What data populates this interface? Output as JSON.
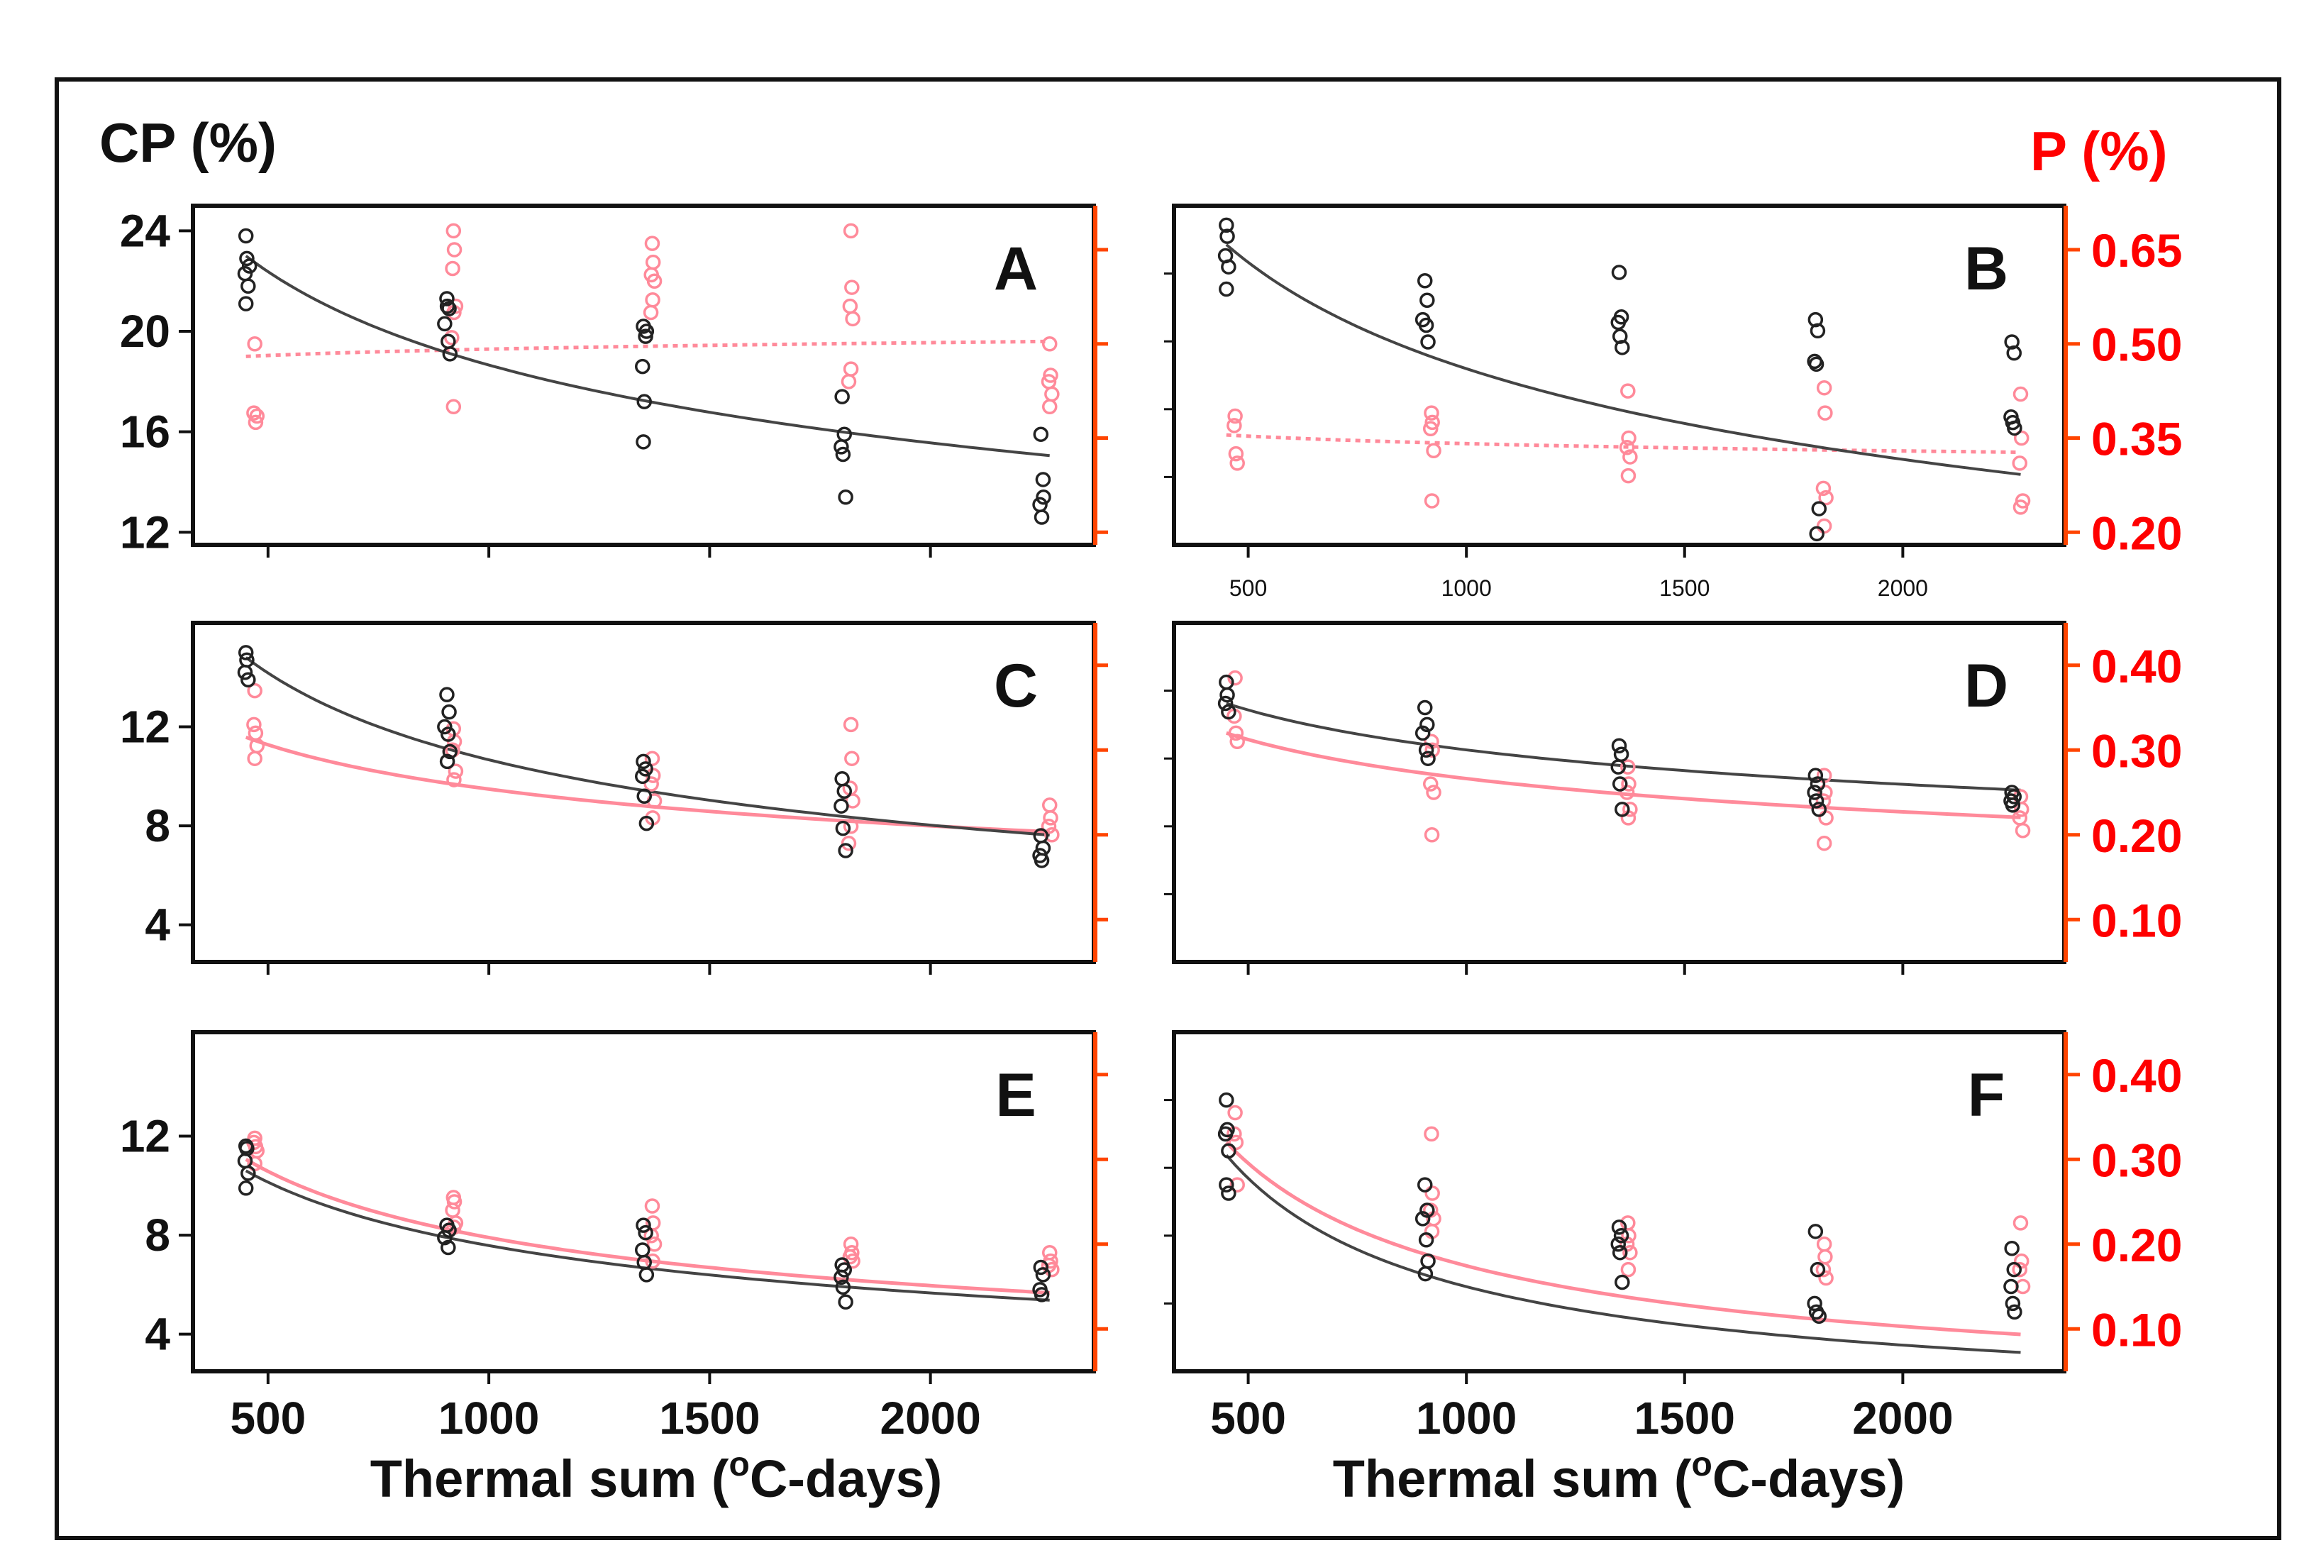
{
  "figure": {
    "left_axis_title": "CP (%)",
    "right_axis_title": "P (%)",
    "xlabel_left": "Thermal sum (",
    "xlabel_right": "Thermal sum (",
    "xlabel_sup": "o",
    "xlabel_tail": "C-days)",
    "colors": {
      "cp": "#222222",
      "p": "#ff8a9a",
      "p_axis": "#ff4400",
      "p_label": "#ff0000"
    }
  },
  "chart_data": [
    {
      "type": "scatter",
      "panel": "A",
      "x_ticks": [],
      "xlim": [
        330,
        2370
      ],
      "cp_ylim": [
        11.5,
        25
      ],
      "cp_ticks": [
        12,
        16,
        20,
        24
      ],
      "p_ylim": [
        0.18,
        0.72
      ],
      "p_ticks": [],
      "p_tick_marks": [
        0.2,
        0.35,
        0.5,
        0.65
      ],
      "cp_points": [
        [
          450,
          23.8
        ],
        [
          452,
          22.9
        ],
        [
          448,
          22.3
        ],
        [
          455,
          21.8
        ],
        [
          450,
          21.1
        ],
        [
          458,
          22.6
        ],
        [
          905,
          21.3
        ],
        [
          910,
          20.9
        ],
        [
          900,
          20.3
        ],
        [
          908,
          19.6
        ],
        [
          912,
          19.1
        ],
        [
          906,
          21.0
        ],
        [
          1350,
          20.2
        ],
        [
          1355,
          19.8
        ],
        [
          1348,
          18.6
        ],
        [
          1352,
          17.2
        ],
        [
          1350,
          15.6
        ],
        [
          1357,
          20.0
        ],
        [
          1800,
          17.4
        ],
        [
          1805,
          15.9
        ],
        [
          1798,
          15.4
        ],
        [
          1802,
          15.1
        ],
        [
          1808,
          13.4
        ],
        [
          2250,
          15.9
        ],
        [
          2255,
          14.1
        ],
        [
          2248,
          13.1
        ],
        [
          2252,
          12.6
        ],
        [
          2256,
          13.4
        ]
      ],
      "p_points": [
        [
          470,
          0.5
        ],
        [
          468,
          0.39
        ],
        [
          472,
          0.375
        ],
        [
          475,
          0.385
        ],
        [
          920,
          0.68
        ],
        [
          922,
          0.65
        ],
        [
          918,
          0.62
        ],
        [
          925,
          0.56
        ],
        [
          921,
          0.55
        ],
        [
          916,
          0.51
        ],
        [
          920,
          0.4
        ],
        [
          1370,
          0.66
        ],
        [
          1372,
          0.63
        ],
        [
          1368,
          0.61
        ],
        [
          1375,
          0.6
        ],
        [
          1371,
          0.57
        ],
        [
          1367,
          0.55
        ],
        [
          1820,
          0.68
        ],
        [
          1822,
          0.59
        ],
        [
          1818,
          0.56
        ],
        [
          1824,
          0.54
        ],
        [
          1820,
          0.46
        ],
        [
          1815,
          0.44
        ],
        [
          2270,
          0.5
        ],
        [
          2272,
          0.45
        ],
        [
          2268,
          0.44
        ],
        [
          2275,
          0.42
        ],
        [
          2270,
          0.4
        ]
      ],
      "cp_fit": {
        "a": 23.0,
        "b": -0.262
      },
      "p_fit": {
        "a": 0.48,
        "b": 0.03,
        "dashed": true
      }
    },
    {
      "type": "scatter",
      "panel": "B",
      "x_ticks": [
        500,
        1000,
        1500,
        2000
      ],
      "xlim": [
        330,
        2370
      ],
      "cp_ylim": [
        15.8,
        28
      ],
      "cp_ticks": [],
      "p_ylim": [
        0.18,
        0.72
      ],
      "p_ticks": [
        0.2,
        0.35,
        0.5,
        0.65
      ],
      "cp_points": [
        [
          450,
          27.3
        ],
        [
          452,
          26.9
        ],
        [
          448,
          26.2
        ],
        [
          455,
          25.8
        ],
        [
          450,
          25.0
        ],
        [
          905,
          25.3
        ],
        [
          910,
          24.6
        ],
        [
          900,
          23.9
        ],
        [
          908,
          23.7
        ],
        [
          912,
          23.1
        ],
        [
          1350,
          25.6
        ],
        [
          1355,
          24.0
        ],
        [
          1348,
          23.8
        ],
        [
          1352,
          23.3
        ],
        [
          1357,
          22.9
        ],
        [
          1800,
          23.9
        ],
        [
          1805,
          23.5
        ],
        [
          1798,
          22.4
        ],
        [
          1802,
          22.3
        ],
        [
          1808,
          17.1
        ],
        [
          1803,
          16.2
        ],
        [
          2250,
          23.1
        ],
        [
          2255,
          22.7
        ],
        [
          2248,
          20.4
        ],
        [
          2252,
          20.2
        ],
        [
          2256,
          20.0
        ]
      ],
      "p_points": [
        [
          470,
          0.385
        ],
        [
          468,
          0.37
        ],
        [
          472,
          0.325
        ],
        [
          475,
          0.31
        ],
        [
          920,
          0.39
        ],
        [
          922,
          0.375
        ],
        [
          918,
          0.365
        ],
        [
          925,
          0.33
        ],
        [
          921,
          0.25
        ],
        [
          1370,
          0.425
        ],
        [
          1372,
          0.35
        ],
        [
          1368,
          0.335
        ],
        [
          1375,
          0.32
        ],
        [
          1371,
          0.29
        ],
        [
          1820,
          0.43
        ],
        [
          1822,
          0.39
        ],
        [
          1818,
          0.27
        ],
        [
          1824,
          0.255
        ],
        [
          1820,
          0.21
        ],
        [
          2270,
          0.42
        ],
        [
          2272,
          0.35
        ],
        [
          2268,
          0.31
        ],
        [
          2275,
          0.25
        ],
        [
          2270,
          0.24
        ]
      ],
      "cp_fit": {
        "a": 26.6,
        "b": -0.23
      },
      "p_fit": {
        "a": 0.355,
        "b": -0.05,
        "dashed": true
      }
    },
    {
      "type": "scatter",
      "panel": "C",
      "x_ticks": [],
      "xlim": [
        330,
        2370
      ],
      "cp_ylim": [
        2.5,
        16.2
      ],
      "cp_ticks": [
        4,
        8,
        12
      ],
      "p_ylim": [
        0.05,
        0.45
      ],
      "p_ticks": [],
      "p_tick_marks": [
        0.1,
        0.2,
        0.3,
        0.4
      ],
      "cp_points": [
        [
          450,
          15.0
        ],
        [
          452,
          14.7
        ],
        [
          448,
          14.2
        ],
        [
          455,
          13.9
        ],
        [
          905,
          13.3
        ],
        [
          910,
          12.6
        ],
        [
          900,
          12.0
        ],
        [
          908,
          11.7
        ],
        [
          912,
          11.0
        ],
        [
          906,
          10.6
        ],
        [
          1350,
          10.6
        ],
        [
          1355,
          10.3
        ],
        [
          1348,
          10.0
        ],
        [
          1352,
          9.2
        ],
        [
          1357,
          8.1
        ],
        [
          1800,
          9.9
        ],
        [
          1805,
          9.4
        ],
        [
          1798,
          8.8
        ],
        [
          1802,
          7.9
        ],
        [
          1808,
          7.0
        ],
        [
          2250,
          7.6
        ],
        [
          2255,
          7.1
        ],
        [
          2248,
          6.8
        ],
        [
          2252,
          6.6
        ]
      ],
      "p_points": [
        [
          470,
          0.37
        ],
        [
          468,
          0.33
        ],
        [
          472,
          0.32
        ],
        [
          475,
          0.305
        ],
        [
          470,
          0.29
        ],
        [
          920,
          0.325
        ],
        [
          922,
          0.31
        ],
        [
          918,
          0.3
        ],
        [
          925,
          0.275
        ],
        [
          921,
          0.265
        ],
        [
          1370,
          0.29
        ],
        [
          1372,
          0.27
        ],
        [
          1368,
          0.26
        ],
        [
          1375,
          0.24
        ],
        [
          1371,
          0.22
        ],
        [
          1820,
          0.33
        ],
        [
          1822,
          0.29
        ],
        [
          1818,
          0.255
        ],
        [
          1824,
          0.24
        ],
        [
          1820,
          0.21
        ],
        [
          1815,
          0.19
        ],
        [
          2270,
          0.235
        ],
        [
          2272,
          0.22
        ],
        [
          2268,
          0.21
        ],
        [
          2275,
          0.2
        ]
      ],
      "cp_fit": {
        "a": 14.8,
        "b": -0.41
      },
      "p_fit": {
        "a": 0.315,
        "b": -0.27
      }
    },
    {
      "type": "scatter",
      "panel": "D",
      "x_ticks": [],
      "xlim": [
        330,
        2370
      ],
      "cp_ylim": [
        0.05,
        0.45
      ],
      "cp_ticks": [],
      "p_ylim": [
        0.05,
        0.45
      ],
      "p_ticks": [
        0.1,
        0.2,
        0.3,
        0.4
      ],
      "cp_points": [
        [
          450,
          0.38
        ],
        [
          452,
          0.365
        ],
        [
          448,
          0.355
        ],
        [
          455,
          0.345
        ],
        [
          905,
          0.35
        ],
        [
          910,
          0.33
        ],
        [
          900,
          0.32
        ],
        [
          908,
          0.3
        ],
        [
          912,
          0.29
        ],
        [
          1350,
          0.305
        ],
        [
          1355,
          0.295
        ],
        [
          1348,
          0.28
        ],
        [
          1352,
          0.26
        ],
        [
          1357,
          0.23
        ],
        [
          1800,
          0.27
        ],
        [
          1805,
          0.26
        ],
        [
          1798,
          0.25
        ],
        [
          1802,
          0.24
        ],
        [
          1808,
          0.23
        ],
        [
          2250,
          0.25
        ],
        [
          2255,
          0.245
        ],
        [
          2248,
          0.24
        ],
        [
          2252,
          0.235
        ]
      ],
      "p_points": [
        [
          470,
          0.385
        ],
        [
          468,
          0.34
        ],
        [
          472,
          0.32
        ],
        [
          475,
          0.31
        ],
        [
          920,
          0.31
        ],
        [
          922,
          0.3
        ],
        [
          918,
          0.26
        ],
        [
          925,
          0.25
        ],
        [
          921,
          0.2
        ],
        [
          1370,
          0.28
        ],
        [
          1372,
          0.26
        ],
        [
          1368,
          0.25
        ],
        [
          1375,
          0.23
        ],
        [
          1371,
          0.22
        ],
        [
          1820,
          0.27
        ],
        [
          1822,
          0.25
        ],
        [
          1818,
          0.24
        ],
        [
          1824,
          0.22
        ],
        [
          1820,
          0.19
        ],
        [
          2270,
          0.245
        ],
        [
          2272,
          0.23
        ],
        [
          2268,
          0.22
        ],
        [
          2275,
          0.205
        ]
      ],
      "cp_fit": {
        "a": 0.355,
        "b": -0.21
      },
      "p_fit": {
        "a": 0.32,
        "b": -0.23
      }
    },
    {
      "type": "scatter",
      "panel": "E",
      "x_ticks": [
        500,
        1000,
        1500,
        2000
      ],
      "xlim": [
        330,
        2370
      ],
      "cp_ylim": [
        2.5,
        16.2
      ],
      "cp_ticks": [
        4,
        8,
        12
      ],
      "p_ylim": [
        0.05,
        0.45
      ],
      "p_ticks": [],
      "p_tick_marks": [
        0.1,
        0.2,
        0.3,
        0.4
      ],
      "cp_points": [
        [
          450,
          11.6
        ],
        [
          452,
          11.5
        ],
        [
          448,
          11.0
        ],
        [
          455,
          10.5
        ],
        [
          450,
          9.9
        ],
        [
          905,
          8.4
        ],
        [
          910,
          8.2
        ],
        [
          900,
          7.9
        ],
        [
          908,
          7.5
        ],
        [
          1350,
          8.4
        ],
        [
          1355,
          8.1
        ],
        [
          1348,
          7.4
        ],
        [
          1352,
          6.9
        ],
        [
          1357,
          6.4
        ],
        [
          1800,
          6.8
        ],
        [
          1805,
          6.6
        ],
        [
          1798,
          6.3
        ],
        [
          1802,
          5.9
        ],
        [
          1808,
          5.3
        ],
        [
          2250,
          6.7
        ],
        [
          2255,
          6.4
        ],
        [
          2248,
          5.8
        ],
        [
          2252,
          5.6
        ]
      ],
      "p_points": [
        [
          470,
          0.325
        ],
        [
          468,
          0.32
        ],
        [
          472,
          0.315
        ],
        [
          475,
          0.31
        ],
        [
          470,
          0.295
        ],
        [
          920,
          0.255
        ],
        [
          922,
          0.25
        ],
        [
          918,
          0.24
        ],
        [
          925,
          0.225
        ],
        [
          921,
          0.22
        ],
        [
          1370,
          0.245
        ],
        [
          1372,
          0.225
        ],
        [
          1368,
          0.21
        ],
        [
          1375,
          0.2
        ],
        [
          1371,
          0.18
        ],
        [
          1820,
          0.2
        ],
        [
          1822,
          0.19
        ],
        [
          1818,
          0.185
        ],
        [
          1824,
          0.18
        ],
        [
          2270,
          0.19
        ],
        [
          2272,
          0.18
        ],
        [
          2268,
          0.175
        ],
        [
          2275,
          0.17
        ]
      ],
      "cp_fit": {
        "a": 10.6,
        "b": -0.42
      },
      "p_fit": {
        "a": 0.3,
        "b": -0.46
      }
    },
    {
      "type": "scatter",
      "panel": "F",
      "x_ticks": [
        500,
        1000,
        1500,
        2000
      ],
      "xlim": [
        330,
        2370
      ],
      "cp_ylim": [
        0.05,
        0.45
      ],
      "cp_ticks": [],
      "p_ylim": [
        0.05,
        0.45
      ],
      "p_ticks": [
        0.1,
        0.2,
        0.3,
        0.4
      ],
      "cp_points": [
        [
          450,
          0.37
        ],
        [
          452,
          0.335
        ],
        [
          448,
          0.33
        ],
        [
          455,
          0.31
        ],
        [
          450,
          0.27
        ],
        [
          455,
          0.26
        ],
        [
          905,
          0.27
        ],
        [
          910,
          0.24
        ],
        [
          900,
          0.23
        ],
        [
          908,
          0.205
        ],
        [
          912,
          0.18
        ],
        [
          906,
          0.165
        ],
        [
          1350,
          0.22
        ],
        [
          1355,
          0.21
        ],
        [
          1348,
          0.2
        ],
        [
          1352,
          0.19
        ],
        [
          1357,
          0.155
        ],
        [
          1800,
          0.215
        ],
        [
          1805,
          0.17
        ],
        [
          1798,
          0.13
        ],
        [
          1802,
          0.12
        ],
        [
          1808,
          0.115
        ],
        [
          2250,
          0.195
        ],
        [
          2255,
          0.17
        ],
        [
          2248,
          0.15
        ],
        [
          2252,
          0.13
        ],
        [
          2256,
          0.12
        ]
      ],
      "p_points": [
        [
          470,
          0.355
        ],
        [
          468,
          0.33
        ],
        [
          472,
          0.32
        ],
        [
          475,
          0.27
        ],
        [
          920,
          0.33
        ],
        [
          922,
          0.26
        ],
        [
          918,
          0.24
        ],
        [
          925,
          0.23
        ],
        [
          921,
          0.215
        ],
        [
          1370,
          0.225
        ],
        [
          1372,
          0.21
        ],
        [
          1368,
          0.2
        ],
        [
          1375,
          0.19
        ],
        [
          1371,
          0.17
        ],
        [
          1820,
          0.2
        ],
        [
          1822,
          0.185
        ],
        [
          1818,
          0.17
        ],
        [
          1824,
          0.16
        ],
        [
          2270,
          0.225
        ],
        [
          2272,
          0.18
        ],
        [
          2268,
          0.17
        ],
        [
          2275,
          0.15
        ]
      ],
      "cp_fit": {
        "a": 0.305,
        "b": -0.89
      },
      "p_fit": {
        "a": 0.32,
        "b": -0.76
      }
    }
  ]
}
